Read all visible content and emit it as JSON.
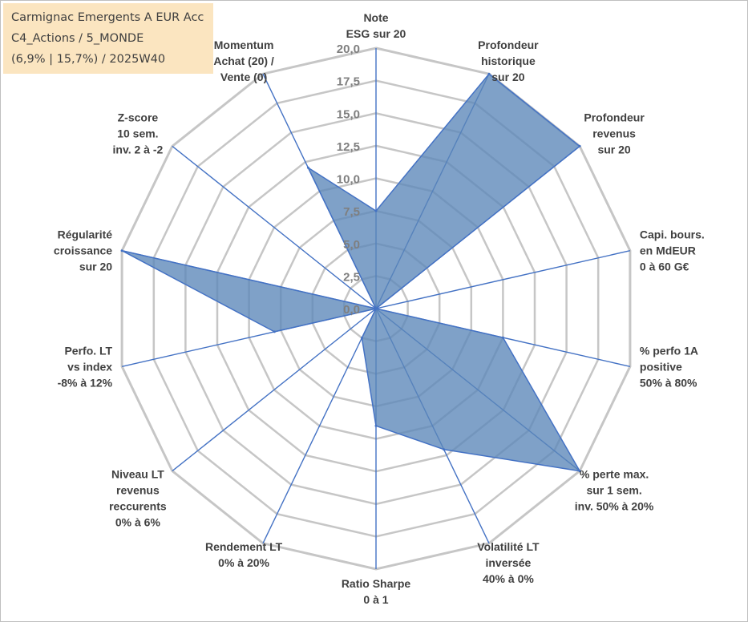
{
  "title": {
    "line1": "Carmignac Emergents A EUR Acc",
    "line2": "C4_Actions / 5_MONDE",
    "line3": "(6,9% | 15,7%) / 2025W40"
  },
  "chart_data": {
    "type": "radar",
    "range": [
      0,
      20
    ],
    "ticks": [
      "0,0",
      "2,5",
      "5,0",
      "7,5",
      "10,0",
      "12,5",
      "15,0",
      "17,5",
      "20,0"
    ],
    "tick_values": [
      0,
      2.5,
      5,
      7.5,
      10,
      12.5,
      15,
      17.5,
      20
    ],
    "grid": true,
    "colors": {
      "fill": "#5b87b8",
      "stroke": "#4472c4",
      "grid": "#c6c6c6",
      "spoke": "#4472c4"
    },
    "axes": [
      {
        "label": [
          "Note",
          "ESG sur 20"
        ],
        "value": 7.5
      },
      {
        "label": [
          "Profondeur",
          "historique",
          "sur 20"
        ],
        "value": 20
      },
      {
        "label": [
          "Profondeur",
          "revenus",
          "sur 20"
        ],
        "value": 20
      },
      {
        "label": [
          "Capi. bours.",
          "en MdEUR",
          "0 à 60 G€"
        ],
        "value": 0
      },
      {
        "label": [
          "% perfo 1A",
          "positive",
          "50% à 80%"
        ],
        "value": 10
      },
      {
        "label": [
          "% perte max.",
          "sur 1 sem.",
          "inv. 50% à 20%"
        ],
        "value": 20
      },
      {
        "label": [
          "Volatilité LT",
          "inversée",
          "40% à 0%"
        ],
        "value": 12
      },
      {
        "label": [
          "Ratio Sharpe",
          "0 à 1"
        ],
        "value": 9
      },
      {
        "label": [
          "Rendement LT",
          "0% à 20%"
        ],
        "value": 2.5
      },
      {
        "label": [
          "Niveau LT",
          "revenus",
          "reccurents",
          "0% à 6%"
        ],
        "value": 0
      },
      {
        "label": [
          "Perfo. LT",
          "vs index",
          "-8% à 12%"
        ],
        "value": 8
      },
      {
        "label": [
          "Régularité",
          "croissance",
          "sur 20"
        ],
        "value": 20
      },
      {
        "label": [
          "Z-score",
          "10 sem.",
          "inv. 2 à -2"
        ],
        "value": 0
      },
      {
        "label": [
          "Momentum",
          "Achat (20) /",
          "Vente (0)"
        ],
        "value": 12
      }
    ]
  }
}
